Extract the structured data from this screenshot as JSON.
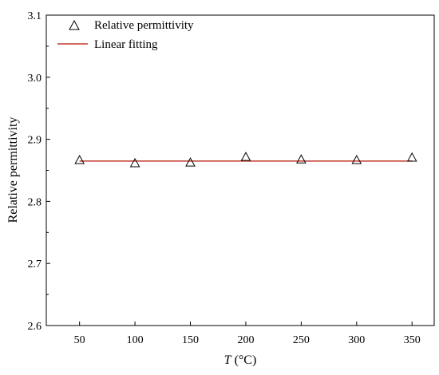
{
  "chart_data": {
    "type": "scatter",
    "title": "",
    "xlabel_var": "T",
    "xlabel_unit": " (°C)",
    "ylabel": "Relative permittivity",
    "xlim": [
      20,
      370
    ],
    "ylim": [
      2.6,
      3.1
    ],
    "xticks": [
      50,
      100,
      150,
      200,
      250,
      300,
      350
    ],
    "yticks": [
      2.6,
      2.7,
      2.8,
      2.9,
      3.0,
      3.1
    ],
    "xtick_labels": [
      "50",
      "100",
      "150",
      "200",
      "250",
      "300",
      "350"
    ],
    "ytick_labels": [
      "2.6",
      "2.7",
      "2.8",
      "2.9",
      "3.0",
      "3.1"
    ],
    "grid": false,
    "legend_position": "top-left",
    "series": [
      {
        "name": "Relative permittivity",
        "type": "scatter",
        "marker": "open-triangle",
        "color": "#000000",
        "x": [
          50,
          100,
          150,
          200,
          250,
          300,
          350
        ],
        "y": [
          2.866,
          2.861,
          2.862,
          2.871,
          2.867,
          2.866,
          2.87
        ]
      },
      {
        "name": "Linear fitting",
        "type": "line",
        "color": "#c0392b",
        "x": [
          50,
          350
        ],
        "y": [
          2.865,
          2.865
        ]
      }
    ]
  }
}
